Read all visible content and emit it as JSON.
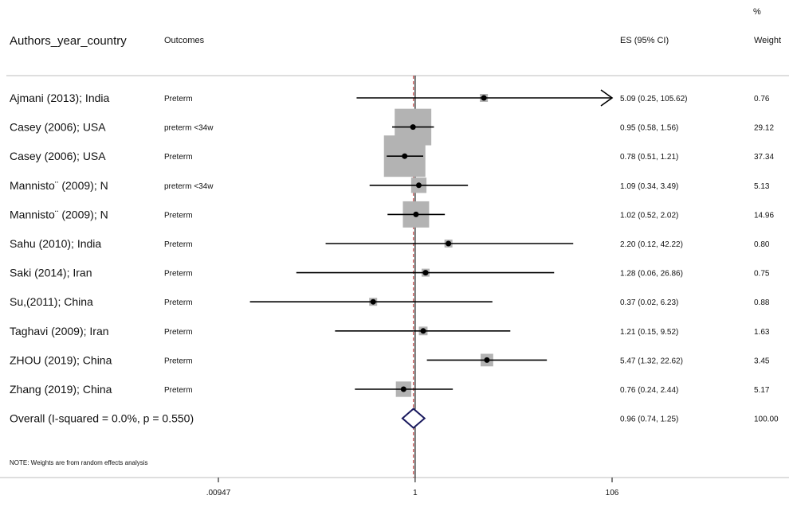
{
  "header": {
    "study_col": "Authors_year_country",
    "outcome_col": "Outcomes",
    "es_col": "ES (95% CI)",
    "weight_pct": "%",
    "weight_col": "Weight"
  },
  "chart_data": {
    "type": "forest",
    "x_scale": "log",
    "xlim": [
      0.00947,
      106
    ],
    "x_ticks": [
      {
        "value": 0.00947,
        "label": ".00947"
      },
      {
        "value": 1,
        "label": "1"
      },
      {
        "value": 106,
        "label": "106"
      }
    ],
    "null_line": 1,
    "rows": [
      {
        "study": "Ajmani (2013); India",
        "outcome": "Preterm",
        "es": 5.09,
        "lo": 0.25,
        "hi": 105.62,
        "ci_text": "5.09 (0.25, 105.62)",
        "weight": 0.76,
        "weight_text": "0.76",
        "arrow": true
      },
      {
        "study": "Casey (2006); USA",
        "outcome": "preterm <34w",
        "es": 0.95,
        "lo": 0.58,
        "hi": 1.56,
        "ci_text": "0.95 (0.58, 1.56)",
        "weight": 29.12,
        "weight_text": "29.12"
      },
      {
        "study": "Casey (2006); USA",
        "outcome": "Preterm",
        "es": 0.78,
        "lo": 0.51,
        "hi": 1.21,
        "ci_text": "0.78 (0.51, 1.21)",
        "weight": 37.34,
        "weight_text": "37.34"
      },
      {
        "study": "Mannisto¨ (2009); N",
        "outcome": "preterm <34w",
        "es": 1.09,
        "lo": 0.34,
        "hi": 3.49,
        "ci_text": "1.09 (0.34, 3.49)",
        "weight": 5.13,
        "weight_text": "5.13"
      },
      {
        "study": "Mannisto¨ (2009); N",
        "outcome": "Preterm",
        "es": 1.02,
        "lo": 0.52,
        "hi": 2.02,
        "ci_text": "1.02 (0.52, 2.02)",
        "weight": 14.96,
        "weight_text": "14.96"
      },
      {
        "study": "Sahu (2010); India",
        "outcome": "Preterm",
        "es": 2.2,
        "lo": 0.12,
        "hi": 42.22,
        "ci_text": "2.20 (0.12, 42.22)",
        "weight": 0.8,
        "weight_text": "0.80"
      },
      {
        "study": "Saki (2014); Iran",
        "outcome": "Preterm",
        "es": 1.28,
        "lo": 0.06,
        "hi": 26.86,
        "ci_text": "1.28 (0.06, 26.86)",
        "weight": 0.75,
        "weight_text": "0.75"
      },
      {
        "study": "Su,(2011); China",
        "outcome": "Preterm",
        "es": 0.37,
        "lo": 0.02,
        "hi": 6.23,
        "ci_text": "0.37 (0.02, 6.23)",
        "weight": 0.88,
        "weight_text": "0.88"
      },
      {
        "study": "Taghavi (2009); Iran",
        "outcome": "Preterm",
        "es": 1.21,
        "lo": 0.15,
        "hi": 9.52,
        "ci_text": "1.21 (0.15, 9.52)",
        "weight": 1.63,
        "weight_text": "1.63"
      },
      {
        "study": "ZHOU (2019); China",
        "outcome": "Preterm",
        "es": 5.47,
        "lo": 1.32,
        "hi": 22.62,
        "ci_text": "5.47 (1.32, 22.62)",
        "weight": 3.45,
        "weight_text": "3.45"
      },
      {
        "study": "Zhang (2019); China",
        "outcome": "Preterm",
        "es": 0.76,
        "lo": 0.24,
        "hi": 2.44,
        "ci_text": "0.76 (0.24, 2.44)",
        "weight": 5.17,
        "weight_text": "5.17"
      }
    ],
    "overall": {
      "label": "Overall  (I-squared = 0.0%, p = 0.550)",
      "es": 0.96,
      "lo": 0.74,
      "hi": 1.25,
      "ci_text": "0.96 (0.74, 1.25)",
      "weight_text": "100.00"
    },
    "note": "NOTE: Weights are from random effects analysis"
  },
  "colors": {
    "box": "#b3b3b3",
    "line": "#000000",
    "diamond": "#1a1a5e",
    "overall_line": "#b22222",
    "rule": "#bdbdbd"
  }
}
